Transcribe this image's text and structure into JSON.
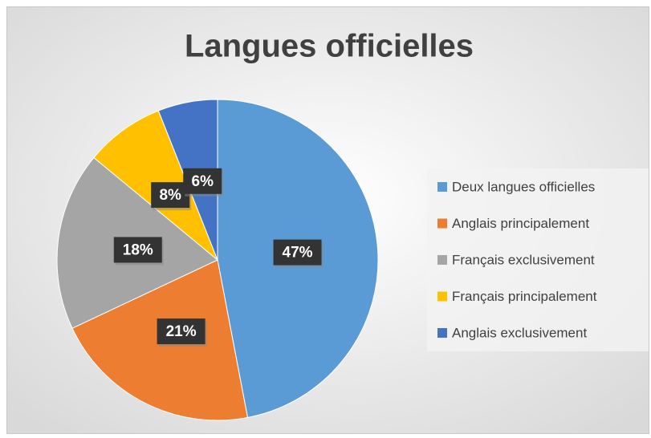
{
  "chart_data": {
    "type": "pie",
    "title": "Langues officielles",
    "categories": [
      "Deux langues officielles",
      "Anglais principalement",
      "Français exclusivement",
      "Français principalement",
      "Anglais exclusivement"
    ],
    "values": [
      47,
      21,
      18,
      8,
      6
    ],
    "value_labels": [
      "47%",
      "21%",
      "18%",
      "8%",
      "6%"
    ],
    "colors": [
      "#5b9bd5",
      "#ed7d31",
      "#a5a5a5",
      "#ffc000",
      "#4472c4"
    ],
    "legend": "right"
  }
}
